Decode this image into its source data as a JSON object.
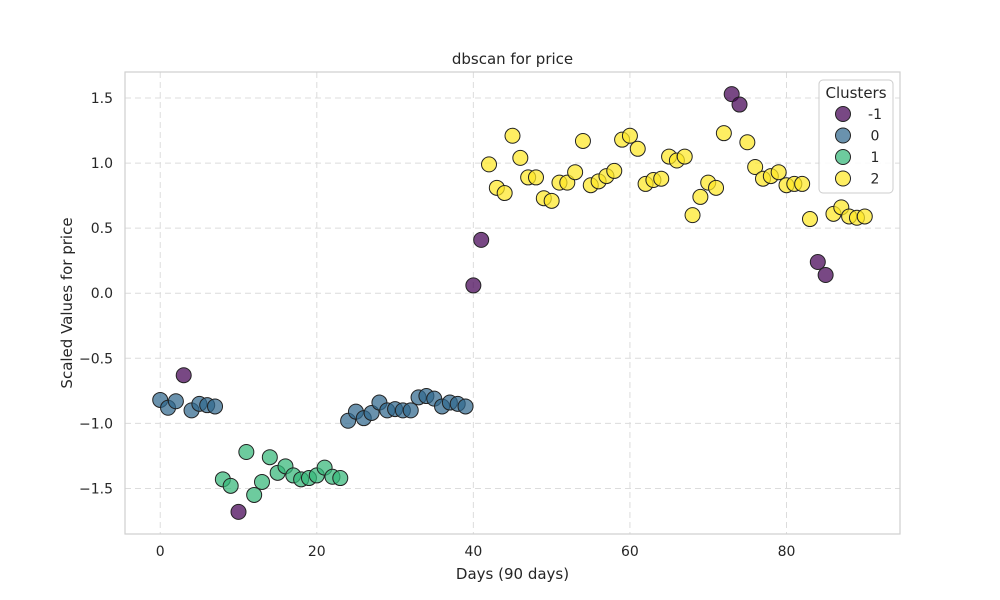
{
  "chart_data": {
    "type": "scatter",
    "title": "dbscan for price",
    "xlabel": "Days (90 days)",
    "ylabel": "Scaled Values for price",
    "xlim": [
      -4.5,
      94.5
    ],
    "ylim": [
      -1.85,
      1.7
    ],
    "xticks": [
      0,
      20,
      40,
      60,
      80
    ],
    "yticks": [
      -1.5,
      -1.0,
      -0.5,
      0.0,
      0.5,
      1.0,
      1.5
    ],
    "xtick_labels": [
      "0",
      "20",
      "40",
      "60",
      "80"
    ],
    "ytick_labels": [
      "−1.5",
      "−1.0",
      "−0.5",
      "0.0",
      "0.5",
      "1.0",
      "1.5"
    ],
    "grid": true,
    "legend": {
      "title": "Clusters",
      "placement": "top-right"
    },
    "series": [
      {
        "name": "-1",
        "color": "#440154",
        "points": [
          [
            3,
            -0.63
          ],
          [
            10,
            -1.68
          ],
          [
            40,
            0.06
          ],
          [
            41,
            0.41
          ],
          [
            73,
            1.53
          ],
          [
            74,
            1.45
          ],
          [
            84,
            0.24
          ],
          [
            85,
            0.14
          ]
        ]
      },
      {
        "name": "0",
        "color": "#31688e",
        "points": [
          [
            0,
            -0.82
          ],
          [
            1,
            -0.88
          ],
          [
            2,
            -0.83
          ],
          [
            4,
            -0.9
          ],
          [
            5,
            -0.85
          ],
          [
            6,
            -0.86
          ],
          [
            7,
            -0.87
          ],
          [
            24,
            -0.98
          ],
          [
            25,
            -0.91
          ],
          [
            26,
            -0.96
          ],
          [
            27,
            -0.92
          ],
          [
            28,
            -0.84
          ],
          [
            29,
            -0.9
          ],
          [
            30,
            -0.89
          ],
          [
            31,
            -0.9
          ],
          [
            32,
            -0.9
          ],
          [
            33,
            -0.8
          ],
          [
            34,
            -0.79
          ],
          [
            35,
            -0.81
          ],
          [
            36,
            -0.87
          ],
          [
            37,
            -0.84
          ],
          [
            38,
            -0.85
          ],
          [
            39,
            -0.87
          ]
        ]
      },
      {
        "name": "1",
        "color": "#35b779",
        "points": [
          [
            8,
            -1.43
          ],
          [
            9,
            -1.48
          ],
          [
            11,
            -1.22
          ],
          [
            12,
            -1.55
          ],
          [
            13,
            -1.45
          ],
          [
            14,
            -1.26
          ],
          [
            15,
            -1.38
          ],
          [
            16,
            -1.33
          ],
          [
            17,
            -1.4
          ],
          [
            18,
            -1.43
          ],
          [
            19,
            -1.42
          ],
          [
            20,
            -1.4
          ],
          [
            21,
            -1.34
          ],
          [
            22,
            -1.41
          ],
          [
            23,
            -1.42
          ]
        ]
      },
      {
        "name": "2",
        "color": "#fde725",
        "points": [
          [
            42,
            0.99
          ],
          [
            43,
            0.81
          ],
          [
            44,
            0.77
          ],
          [
            45,
            1.21
          ],
          [
            46,
            1.04
          ],
          [
            47,
            0.89
          ],
          [
            48,
            0.89
          ],
          [
            49,
            0.73
          ],
          [
            50,
            0.71
          ],
          [
            51,
            0.85
          ],
          [
            52,
            0.85
          ],
          [
            53,
            0.93
          ],
          [
            54,
            1.17
          ],
          [
            55,
            0.83
          ],
          [
            56,
            0.86
          ],
          [
            57,
            0.9
          ],
          [
            58,
            0.94
          ],
          [
            59,
            1.18
          ],
          [
            60,
            1.21
          ],
          [
            61,
            1.11
          ],
          [
            62,
            0.84
          ],
          [
            63,
            0.87
          ],
          [
            64,
            0.88
          ],
          [
            65,
            1.05
          ],
          [
            66,
            1.02
          ],
          [
            67,
            1.05
          ],
          [
            68,
            0.6
          ],
          [
            69,
            0.74
          ],
          [
            70,
            0.85
          ],
          [
            71,
            0.81
          ],
          [
            72,
            1.23
          ],
          [
            75,
            1.16
          ],
          [
            76,
            0.97
          ],
          [
            77,
            0.88
          ],
          [
            78,
            0.9
          ],
          [
            79,
            0.93
          ],
          [
            80,
            0.83
          ],
          [
            81,
            0.84
          ],
          [
            82,
            0.84
          ],
          [
            83,
            0.57
          ],
          [
            86,
            0.61
          ],
          [
            87,
            0.66
          ],
          [
            88,
            0.59
          ],
          [
            89,
            0.58
          ],
          [
            90,
            0.59
          ]
        ]
      }
    ]
  }
}
